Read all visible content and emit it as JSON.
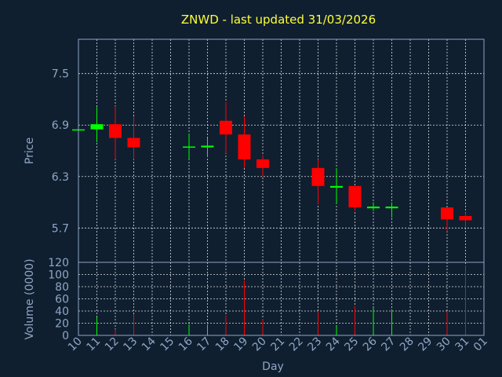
{
  "chart_data": {
    "type": "candlestick",
    "title": "ZNWD - last updated 31/03/2026",
    "xlabel": "Day",
    "ylabel": "Price",
    "volume_ylabel": "Volume (0000)",
    "x_ticks": [
      "10",
      "11",
      "12",
      "13",
      "14",
      "15",
      "16",
      "17",
      "18",
      "19",
      "20",
      "21",
      "22",
      "23",
      "24",
      "25",
      "26",
      "27",
      "28",
      "29",
      "30",
      "31",
      "01"
    ],
    "price_ticks": [
      "5.7",
      "6.3",
      "6.9",
      "7.5"
    ],
    "price_ylim": [
      5.3,
      7.9
    ],
    "volume_ticks": [
      "0",
      "20",
      "40",
      "60",
      "80",
      "100",
      "120"
    ],
    "volume_ylim": [
      0,
      120
    ],
    "colors": {
      "up": "#00ff00",
      "down": "#ff0000",
      "background": "#0f1f30",
      "title": "#ffff33",
      "axis": "#8fa6c4"
    },
    "candles": [
      {
        "day": "10",
        "open": 6.85,
        "high": 6.85,
        "low": 6.85,
        "close": 6.85,
        "volume": 0
      },
      {
        "day": "11",
        "open": 6.85,
        "high": 7.11,
        "low": 6.7,
        "close": 6.91,
        "volume": 30
      },
      {
        "day": "12",
        "open": 6.91,
        "high": 7.12,
        "low": 6.5,
        "close": 6.75,
        "volume": 10
      },
      {
        "day": "13",
        "open": 6.75,
        "high": 7.0,
        "low": 6.5,
        "close": 6.64,
        "volume": 35
      },
      {
        "day": "16",
        "open": 6.64,
        "high": 6.8,
        "low": 6.5,
        "close": 6.65,
        "volume": 18
      },
      {
        "day": "17",
        "open": 6.64,
        "high": 6.75,
        "low": 6.53,
        "close": 6.66,
        "volume": 18
      },
      {
        "day": "18",
        "open": 6.95,
        "high": 7.17,
        "low": 6.57,
        "close": 6.79,
        "volume": 33
      },
      {
        "day": "19",
        "open": 6.79,
        "high": 7.0,
        "low": 6.4,
        "close": 6.5,
        "volume": 90
      },
      {
        "day": "20",
        "open": 6.5,
        "high": 6.55,
        "low": 6.3,
        "close": 6.4,
        "volume": 27
      },
      {
        "day": "23",
        "open": 6.4,
        "high": 6.5,
        "low": 5.98,
        "close": 6.19,
        "volume": 40
      },
      {
        "day": "24",
        "open": 6.17,
        "high": 6.4,
        "low": 5.98,
        "close": 6.19,
        "volume": 15
      },
      {
        "day": "25",
        "open": 6.19,
        "high": 6.19,
        "low": 5.9,
        "close": 5.94,
        "volume": 48
      },
      {
        "day": "26",
        "open": 5.93,
        "high": 6.0,
        "low": 5.9,
        "close": 5.95,
        "volume": 45
      },
      {
        "day": "27",
        "open": 5.93,
        "high": 6.0,
        "low": 5.82,
        "close": 5.95,
        "volume": 43
      },
      {
        "day": "30",
        "open": 5.94,
        "high": 5.94,
        "low": 5.66,
        "close": 5.8,
        "volume": 40
      },
      {
        "day": "31",
        "open": 5.84,
        "high": 5.88,
        "low": 5.7,
        "close": 5.79,
        "volume": 115
      }
    ]
  }
}
